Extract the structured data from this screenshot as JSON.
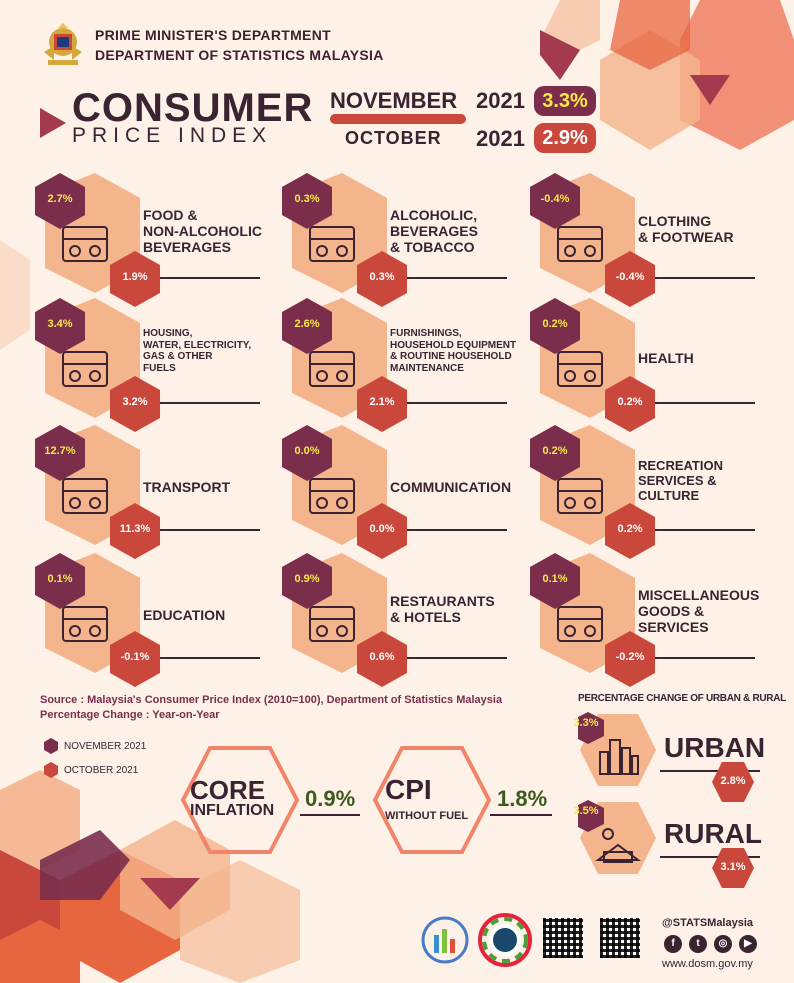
{
  "header": {
    "dept1": "PRIME MINISTER'S DEPARTMENT",
    "dept2": "DEPARTMENT OF STATISTICS MALAYSIA"
  },
  "title": {
    "line1": "CONSUMER",
    "line2": "PRICE INDEX"
  },
  "headline": {
    "nov_month": "NOVEMBER",
    "nov_year": "2021",
    "nov_value": "3.3%",
    "oct_month": "OCTOBER",
    "oct_year": "2021",
    "oct_value": "2.9%"
  },
  "categories": [
    {
      "name": "FOOD &\nNON-ALCOHOLIC\nBEVERAGES",
      "nov": "2.7%",
      "oct": "1.9%",
      "icon": "food-basket-icon"
    },
    {
      "name": "ALCOHOLIC,\nBEVERAGES\n& TOBACCO",
      "nov": "0.3%",
      "oct": "0.3%",
      "icon": "bottles-icon"
    },
    {
      "name": "CLOTHING\n & FOOTWEAR",
      "nov": "-0.4%",
      "oct": "-0.4%",
      "icon": "clothing-icon"
    },
    {
      "name": "HOUSING,\nWATER, ELECTRICITY,\nGAS & OTHER\nFUELS",
      "nov": "3.4%",
      "oct": "3.2%",
      "icon": "house-icon"
    },
    {
      "name": "FURNISHINGS,\nHOUSEHOLD EQUIPMENT\n& ROUTINE HOUSEHOLD\nMAINTENANCE",
      "nov": "2.6%",
      "oct": "2.1%",
      "icon": "armchair-icon"
    },
    {
      "name": "HEALTH",
      "nov": "0.2%",
      "oct": "0.2%",
      "icon": "health-icon"
    },
    {
      "name": "TRANSPORT",
      "nov": "12.7%",
      "oct": "11.3%",
      "icon": "vehicles-icon"
    },
    {
      "name": "COMMUNICATION",
      "nov": "0.0%",
      "oct": "0.0%",
      "icon": "communication-icon"
    },
    {
      "name": "RECREATION\nSERVICES &\nCULTURE",
      "nov": "0.2%",
      "oct": "0.2%",
      "icon": "popcorn-film-icon"
    },
    {
      "name": "EDUCATION",
      "nov": "0.1%",
      "oct": "-0.1%",
      "icon": "graduation-book-icon"
    },
    {
      "name": "RESTAURANTS\n& HOTELS",
      "nov": "0.9%",
      "oct": "0.6%",
      "icon": "restaurant-icon"
    },
    {
      "name": "MISCELLANEOUS\nGOODS &\nSERVICES",
      "nov": "0.1%",
      "oct": "-0.2%",
      "icon": "cards-icon"
    }
  ],
  "source": {
    "line1": "Source : Malaysia's Consumer Price Index (2010=100), Department of Statistics Malaysia",
    "line2": "Percentage Change : Year-on-Year"
  },
  "legend": {
    "nov": "NOVEMBER 2021",
    "oct": "OCTOBER 2021"
  },
  "core": {
    "label1": "CORE",
    "label2": "INFLATION",
    "value": "0.9%"
  },
  "cpi_fuel": {
    "label1": "CPI",
    "label2": "WITHOUT FUEL",
    "value": "1.8%"
  },
  "urban_rural": {
    "title": "PERCENTAGE CHANGE OF URBAN & RURAL",
    "urban_label": "URBAN",
    "urban_nov": "3.3%",
    "urban_oct": "2.8%",
    "rural_label": "RURAL",
    "rural_nov": "3.5%",
    "rural_oct": "3.1%"
  },
  "footer": {
    "handle": "@STATSMalaysia",
    "website": "www.dosm.gov.my"
  },
  "colors": {
    "plum": "#7a2e4c",
    "red": "#c9473b",
    "peach": "#f4b48c",
    "dark": "#3b2331",
    "yellow": "#f8e74a"
  }
}
